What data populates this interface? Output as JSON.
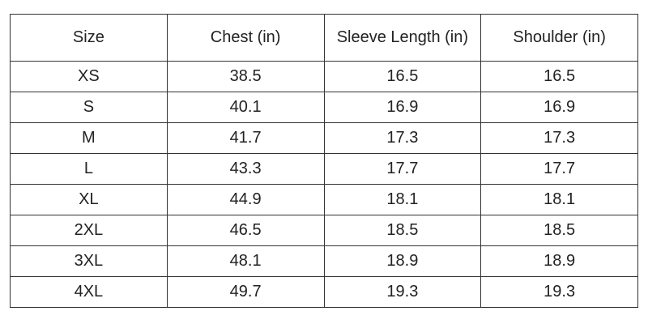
{
  "table": {
    "header": [
      "Size",
      "Chest (in)",
      "Sleeve Length (in)",
      "Shoulder (in)"
    ],
    "rows": [
      [
        "XS",
        38.5,
        16.5,
        16.5
      ],
      [
        "S",
        40.1,
        16.9,
        16.9
      ],
      [
        "M",
        41.7,
        17.3,
        17.3
      ],
      [
        "L",
        43.3,
        17.7,
        17.7
      ],
      [
        "XL",
        44.9,
        18.1,
        18.1
      ],
      [
        "2XL",
        46.5,
        18.5,
        18.5
      ],
      [
        "3XL",
        48.1,
        18.9,
        18.9
      ],
      [
        "4XL",
        49.7,
        19.3,
        19.3
      ]
    ]
  }
}
